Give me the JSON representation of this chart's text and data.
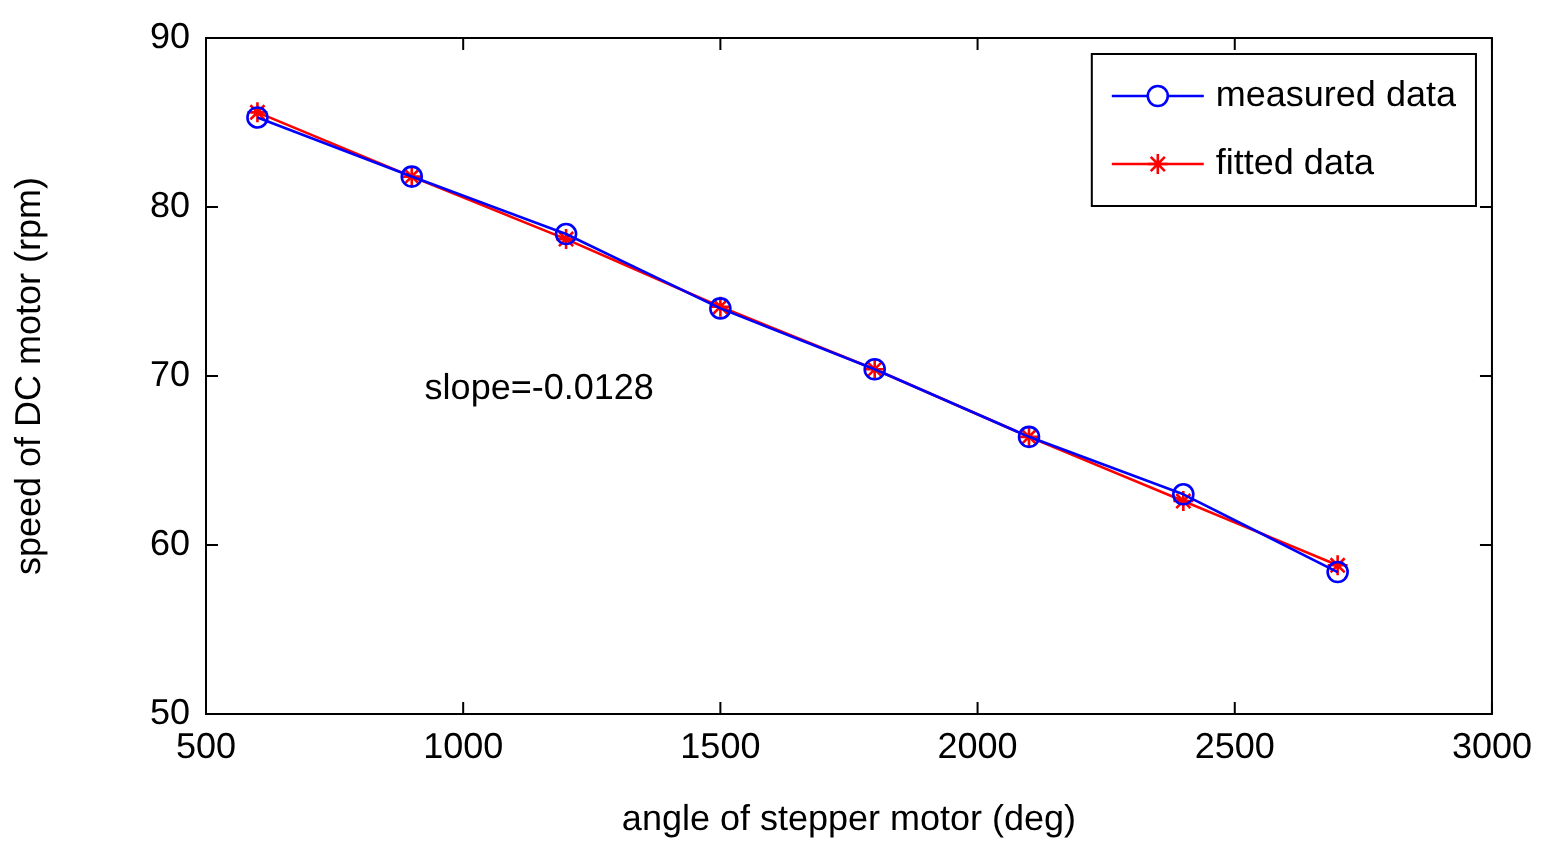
{
  "chart_data": {
    "type": "line",
    "xlabel": "angle of stepper motor (deg)",
    "ylabel": "speed of DC motor (rpm)",
    "x": [
      600,
      900,
      1200,
      1500,
      1800,
      2100,
      2400,
      2700
    ],
    "series": [
      {
        "name": "measured data",
        "color": "#0000ff",
        "marker": "circle",
        "values": [
          85.3,
          81.8,
          78.4,
          74.0,
          70.4,
          66.4,
          63.0,
          58.4
        ]
      },
      {
        "name": "fitted data",
        "color": "#ff0000",
        "marker": "cross",
        "values": [
          85.6,
          81.8,
          78.1,
          74.1,
          70.4,
          66.4,
          62.6,
          58.8
        ]
      }
    ],
    "annotations": [
      "slope=-0.0128"
    ],
    "xlim": [
      500,
      3000
    ],
    "xticks": [
      500,
      1000,
      1500,
      2000,
      2500,
      3000
    ],
    "ylim": [
      50,
      90
    ],
    "yticks": [
      50,
      60,
      70,
      80,
      90
    ],
    "grid": false,
    "legend": "top right",
    "line_style": "solid"
  }
}
